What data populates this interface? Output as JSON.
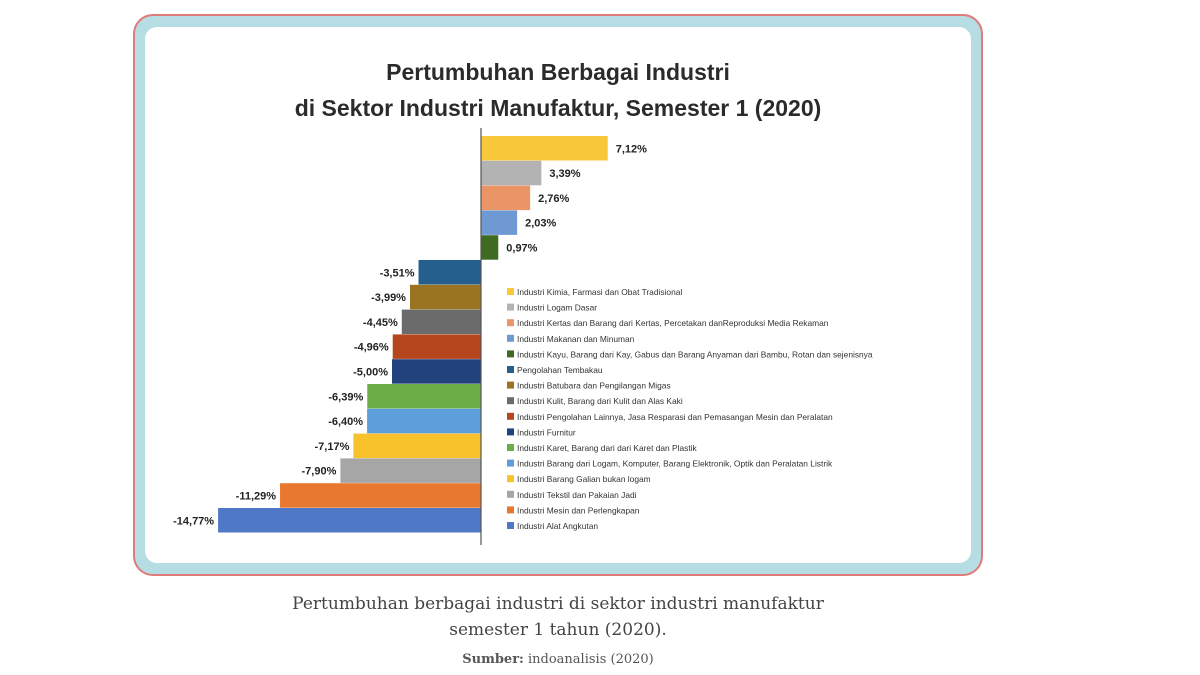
{
  "chart_data": {
    "type": "bar",
    "orientation": "horizontal",
    "title": [
      "Pertumbuhan Berbagai Industri",
      "di Sektor Industri Manufaktur, Semester 1 (2020)"
    ],
    "categories": [
      "Industri Kimia, Farmasi dan Obat Tradisional",
      "Industri Logam Dasar",
      "Industri Kertas dan Barang dari Kertas, Percetakan danReproduksi Media Rekaman",
      "Industri Makanan dan Minuman",
      "Industri Kayu, Barang dari Kay, Gabus dan Barang Anyaman dari Bambu, Rotan dan sejenisnya",
      "Pengolahan Tembakau",
      "Industri Batubara dan Pengilangan Migas",
      "Industri Kulit, Barang dari Kulit dan Alas Kaki",
      "Industri Pengolahan Lainnya, Jasa Resparasi dan Pemasangan Mesin dan Peralatan",
      "Industri Furnitur",
      "Industri Karet, Barang dari dari Karet dan Plastik",
      "Industri Barang dari Logam, Komputer, Barang Elektronik, Optik dan Peralatan Listrik",
      "Industri Barang Galian bukan logam",
      "Industri Tekstil dan Pakaian Jadi",
      "Industri Mesin dan Perlengkapan",
      "Industri Alat Angkutan"
    ],
    "values": [
      7.12,
      3.39,
      2.76,
      2.03,
      0.97,
      -3.51,
      -3.99,
      -4.45,
      -4.96,
      -5.0,
      -6.39,
      -6.4,
      -7.17,
      -7.9,
      -11.29,
      -14.77
    ],
    "value_labels": [
      "7,12%",
      "3,39%",
      "2,76%",
      "2,03%",
      "0,97%",
      "-3,51%",
      "-3,99%",
      "-4,45%",
      "-4,96%",
      "-5,00%",
      "-6,39%",
      "-6,40%",
      "-7,17%",
      "-7,90%",
      "-11,29%",
      "-14,77%"
    ],
    "colors": [
      "#f9c73a",
      "#b3b3b3",
      "#eb9566",
      "#6f99d3",
      "#3f6a22",
      "#255f8e",
      "#9b7422",
      "#6b6b6b",
      "#b5461e",
      "#22427e",
      "#6cae45",
      "#5c9fdb",
      "#f8c22d",
      "#a6a6a6",
      "#e9782f",
      "#4f79c7"
    ],
    "legend_position": "right",
    "grid": false
  },
  "caption": {
    "line1": "Pertumbuhan berbagai industri di sektor industri manufaktur",
    "line2": "semester 1 tahun (2020).",
    "source_label": "Sumber:",
    "source_value": " indoanalisis (2020)"
  }
}
